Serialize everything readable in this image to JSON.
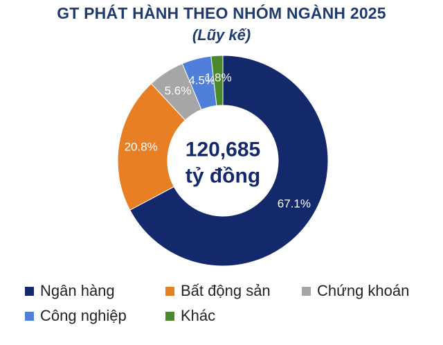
{
  "chart_data": {
    "type": "pie",
    "donut": true,
    "title": "GT PHÁT HÀNH THEO NHÓM NGÀNH 2025",
    "subtitle": "(Lũy kế)",
    "center_value": "120,685",
    "center_unit": "tỷ đồng",
    "categories": [
      "Ngân hàng",
      "Bất động sản",
      "Chứng khoán",
      "Công nghiệp",
      "Khác"
    ],
    "values": [
      67.1,
      20.8,
      5.6,
      4.5,
      1.8
    ],
    "labels": [
      "67.1%",
      "20.8%",
      "5.6%",
      "4.5%",
      "1.8%"
    ],
    "colors": [
      "#14296b",
      "#e87f25",
      "#a6a6a6",
      "#4f7fd9",
      "#4a8a2c"
    ],
    "label_colors": [
      "#ffffff",
      "#ffffff",
      "#ffffff",
      "#ffffff",
      "#ffffff"
    ],
    "legend_position": "bottom"
  }
}
